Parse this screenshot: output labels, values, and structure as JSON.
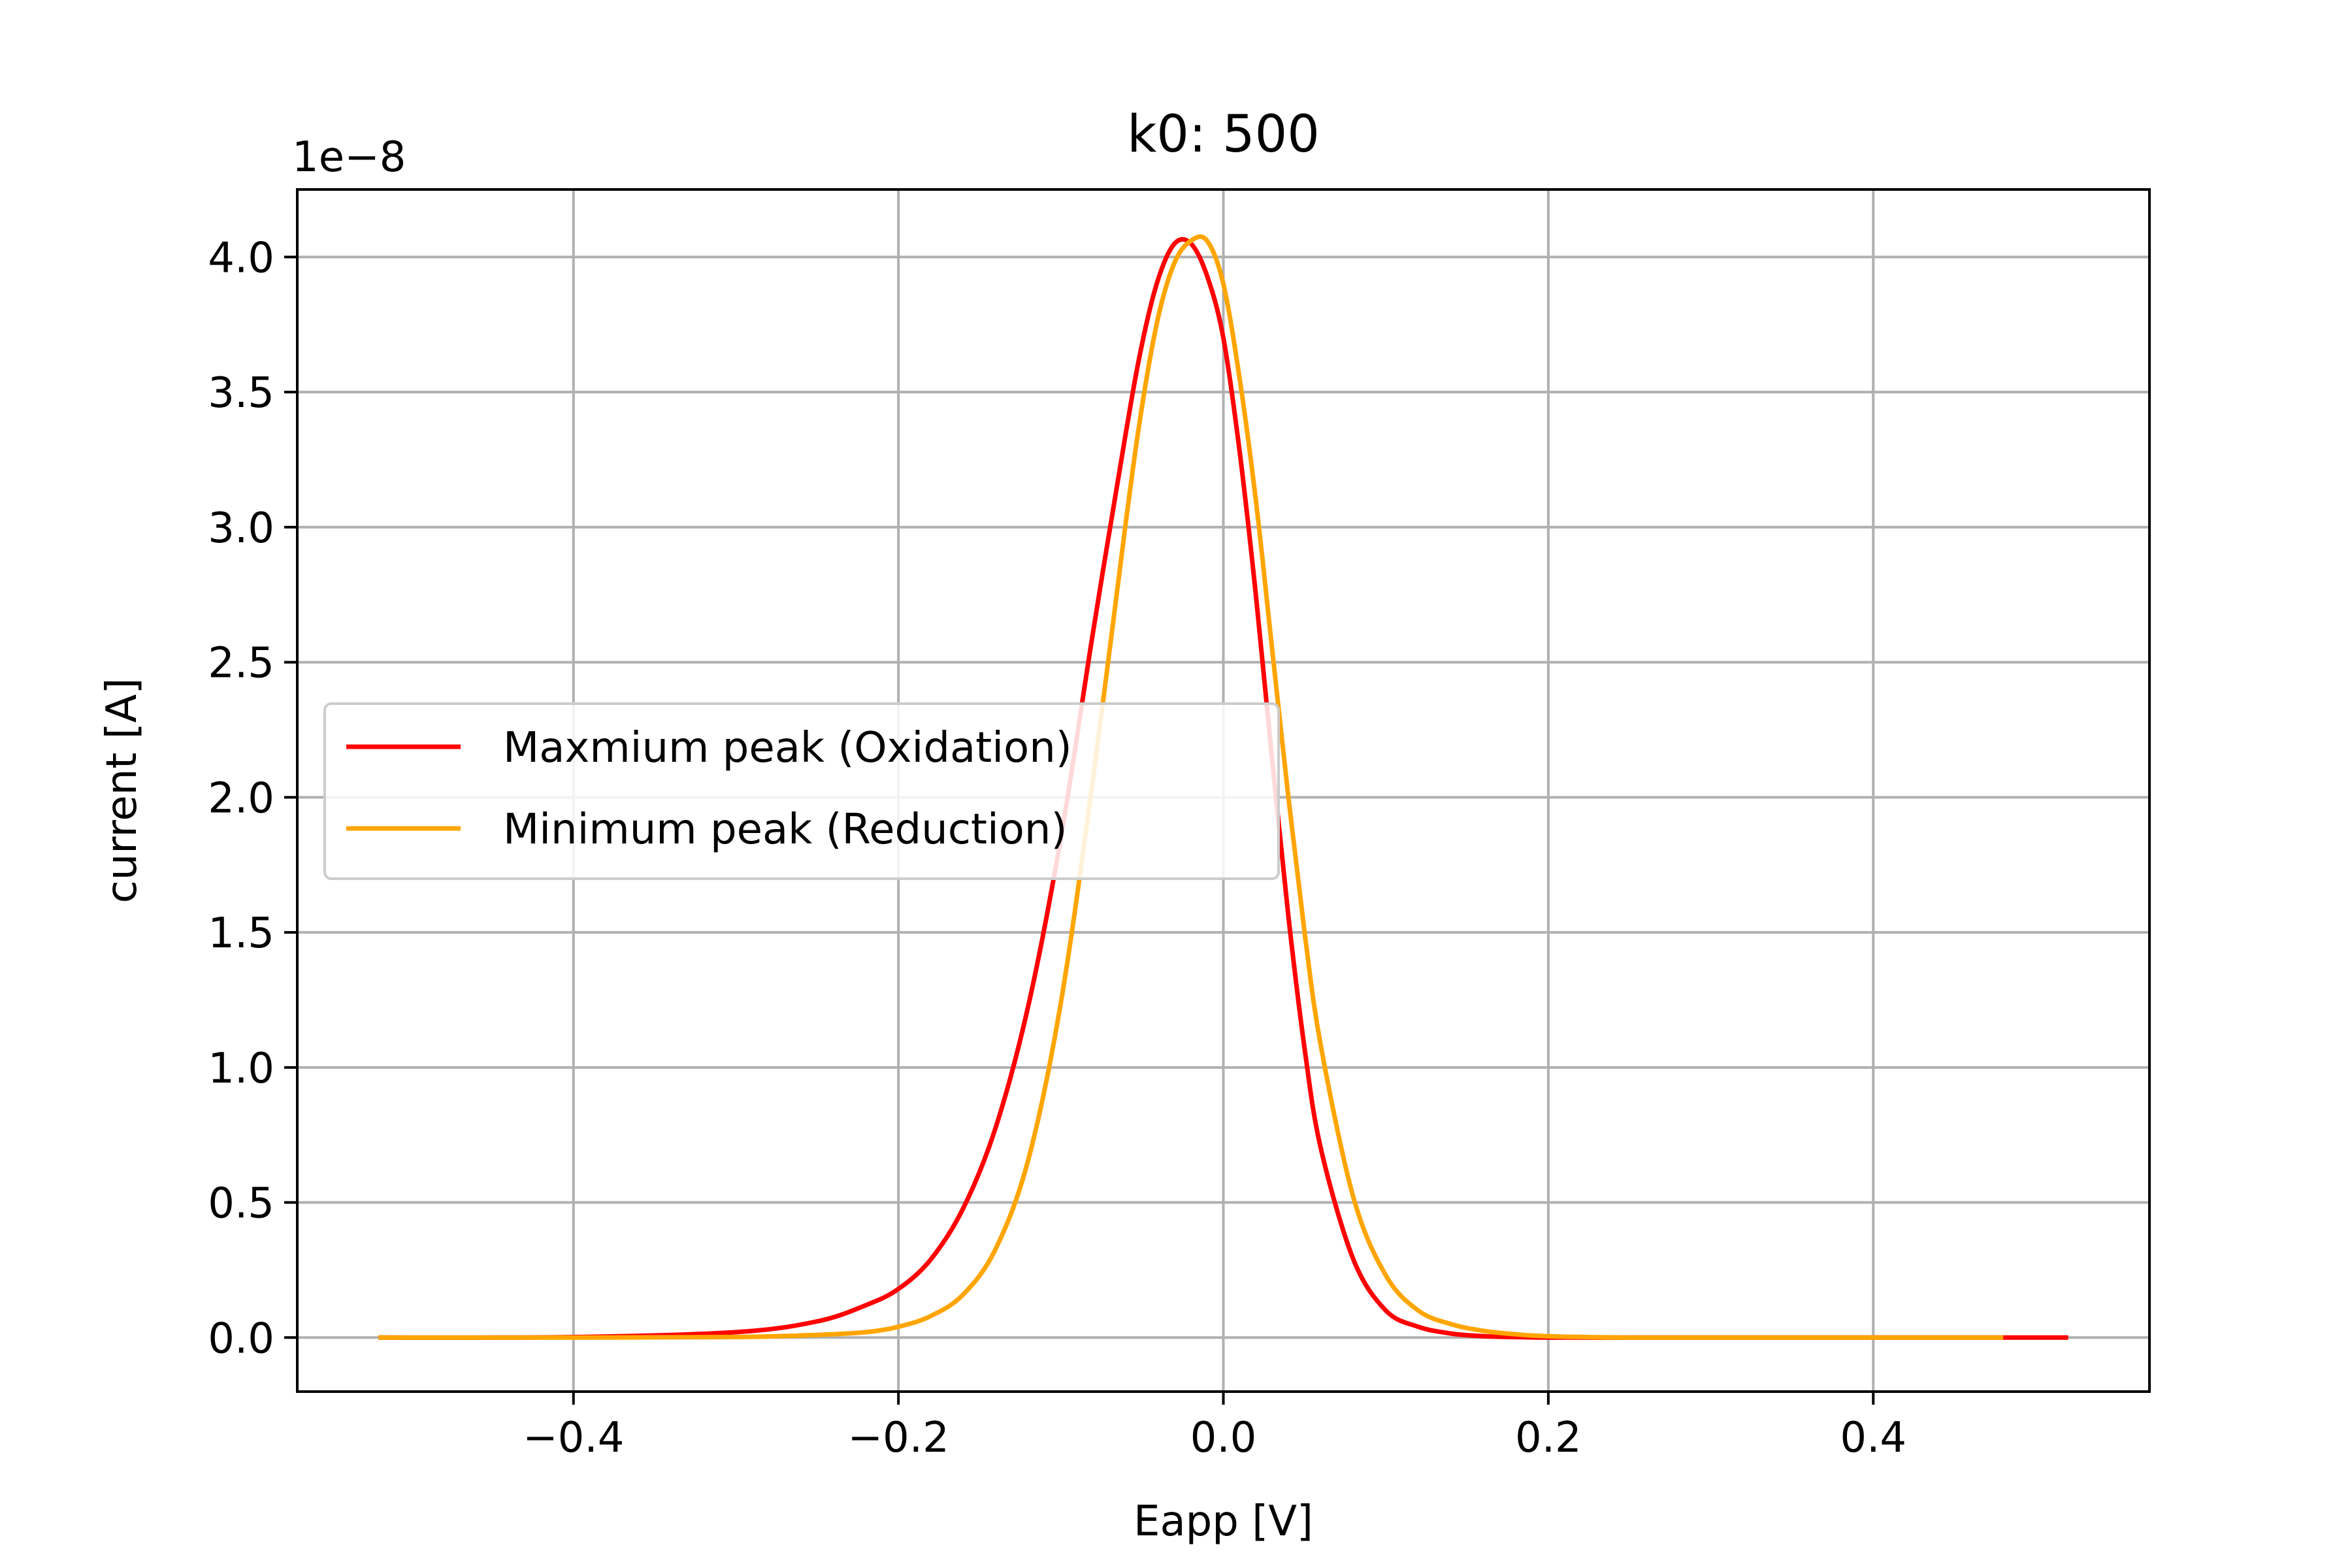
{
  "chart_data": {
    "type": "line",
    "title": "k0: 500",
    "xlabel": "Eapp [V]",
    "ylabel": "current [A]",
    "y_offset_text": "1e−8",
    "y_scale": 1e-08,
    "xlim": [
      -0.57,
      0.57
    ],
    "ylim": [
      -0.2,
      4.25
    ],
    "x_ticks": [
      -0.4,
      -0.2,
      0.0,
      0.2,
      0.4
    ],
    "x_tick_labels": [
      "−0.4",
      "−0.2",
      "0.0",
      "0.2",
      "0.4"
    ],
    "y_ticks": [
      0.0,
      0.5,
      1.0,
      1.5,
      2.0,
      2.5,
      3.0,
      3.5,
      4.0
    ],
    "y_tick_labels": [
      "0.0",
      "0.5",
      "1.0",
      "1.5",
      "2.0",
      "2.5",
      "3.0",
      "3.5",
      "4.0"
    ],
    "grid": true,
    "legend_position": "center-left",
    "series": [
      {
        "name": "Maxmium peak (Oxidation)",
        "color": "#ff0000",
        "x": [
          -0.52,
          -0.4,
          -0.3,
          -0.25,
          -0.22,
          -0.2,
          -0.18,
          -0.16,
          -0.14,
          -0.12,
          -0.1,
          -0.08,
          -0.06,
          -0.05,
          -0.04,
          -0.03,
          -0.02,
          -0.01,
          0.0,
          0.01,
          0.02,
          0.03,
          0.04,
          0.05,
          0.06,
          0.08,
          0.1,
          0.12,
          0.14,
          0.16,
          0.18,
          0.2,
          0.25,
          0.3,
          0.4,
          0.52
        ],
        "y": [
          0.0,
          0.002,
          0.02,
          0.06,
          0.12,
          0.18,
          0.29,
          0.48,
          0.78,
          1.23,
          1.85,
          2.62,
          3.35,
          3.68,
          3.92,
          4.05,
          4.05,
          3.93,
          3.7,
          3.28,
          2.75,
          2.14,
          1.56,
          1.07,
          0.7,
          0.29,
          0.1,
          0.04,
          0.015,
          0.005,
          0.002,
          0.0,
          0.0,
          0.0,
          0.0,
          0.0
        ]
      },
      {
        "name": "Minimum peak (Reduction)",
        "color": "#ffa500",
        "x": [
          -0.52,
          -0.4,
          -0.3,
          -0.25,
          -0.22,
          -0.2,
          -0.18,
          -0.16,
          -0.14,
          -0.12,
          -0.1,
          -0.08,
          -0.06,
          -0.05,
          -0.04,
          -0.03,
          -0.02,
          -0.01,
          0.0,
          0.01,
          0.02,
          0.03,
          0.04,
          0.05,
          0.06,
          0.08,
          0.1,
          0.12,
          0.14,
          0.16,
          0.18,
          0.2,
          0.25,
          0.3,
          0.4,
          0.48
        ],
        "y": [
          0.0,
          0.0,
          0.002,
          0.01,
          0.02,
          0.04,
          0.08,
          0.16,
          0.33,
          0.66,
          1.24,
          2.08,
          3.02,
          3.45,
          3.78,
          3.98,
          4.06,
          4.06,
          3.9,
          3.55,
          3.1,
          2.55,
          2.0,
          1.5,
          1.08,
          0.52,
          0.23,
          0.1,
          0.05,
          0.025,
          0.012,
          0.005,
          0.0,
          0.0,
          0.0,
          0.0
        ]
      }
    ]
  }
}
